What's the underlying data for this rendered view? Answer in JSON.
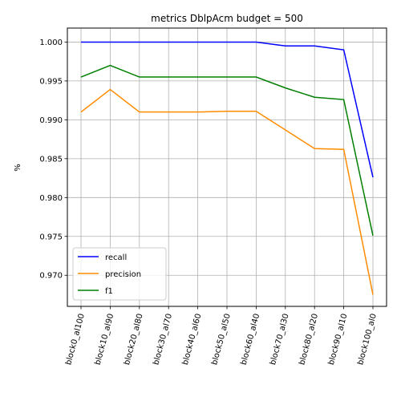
{
  "chart_data": {
    "type": "line",
    "title": "metrics DblpAcm budget = 500",
    "xlabel": "",
    "ylabel": "%",
    "categories": [
      "block0_al100",
      "block10_al90",
      "block20_al80",
      "block30_al70",
      "block40_al60",
      "block50_al50",
      "block60_al40",
      "block70_al30",
      "block80_al20",
      "block90_al10",
      "block100_al0"
    ],
    "ylim": [
      0.966,
      1.0018
    ],
    "yticks": [
      "0.970",
      "0.975",
      "0.980",
      "0.985",
      "0.990",
      "0.995",
      "1.000"
    ],
    "ytick_values": [
      0.97,
      0.975,
      0.98,
      0.985,
      0.99,
      0.995,
      1.0
    ],
    "grid": true,
    "legend_position": "lower-left",
    "series": [
      {
        "name": "recall",
        "color": "#0000ff",
        "values": [
          1.0,
          1.0,
          1.0,
          1.0,
          1.0,
          1.0,
          1.0,
          0.9995,
          0.9995,
          0.999,
          0.9826
        ]
      },
      {
        "name": "precision",
        "color": "#ff8c00",
        "values": [
          0.991,
          0.9939,
          0.991,
          0.991,
          0.991,
          0.9911,
          0.9911,
          0.9887,
          0.9863,
          0.9862,
          0.9675
        ]
      },
      {
        "name": "f1",
        "color": "#008000",
        "values": [
          0.9955,
          0.997,
          0.9955,
          0.9955,
          0.9955,
          0.9955,
          0.9955,
          0.9941,
          0.9929,
          0.9926,
          0.9751
        ]
      }
    ]
  }
}
